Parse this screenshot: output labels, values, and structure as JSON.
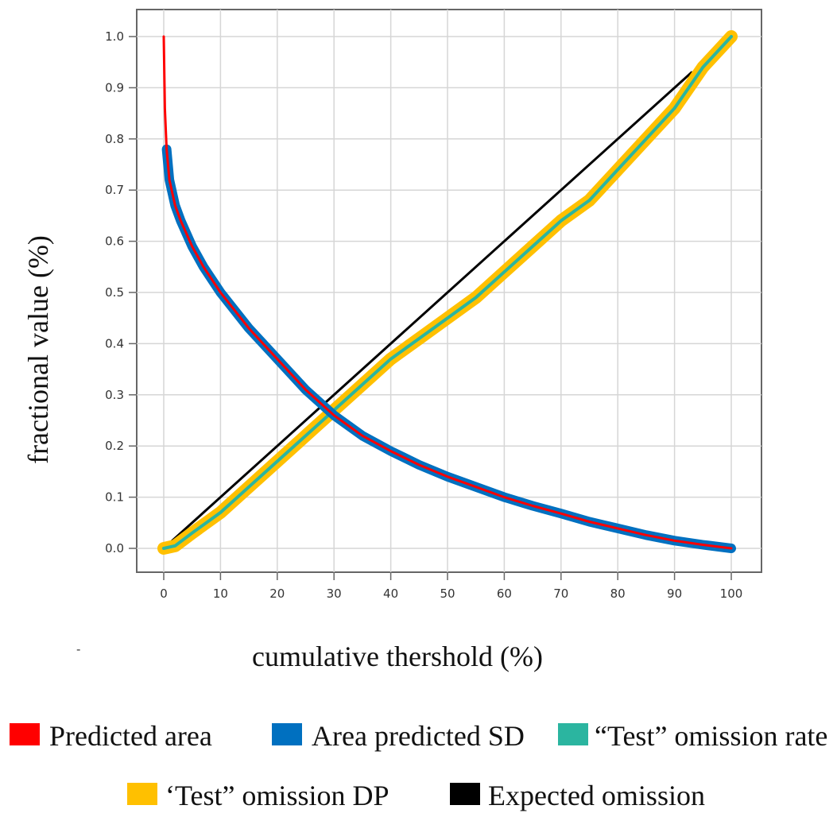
{
  "chart_data": {
    "type": "line",
    "xlabel": "cumulative thershold (%)",
    "ylabel": "fractional value (%)",
    "xlim": [
      0,
      100
    ],
    "ylim": [
      0,
      1
    ],
    "grid": true,
    "legend_placement": "bottom",
    "x_ticks": [
      "0",
      "10",
      "20",
      "30",
      "40",
      "50",
      "60",
      "70",
      "80",
      "90",
      "100"
    ],
    "y_ticks": [
      "0.0",
      "0.1",
      "0.2",
      "0.3",
      "0.4",
      "0.5",
      "0.6",
      "0.7",
      "0.8",
      "0.9",
      "1.0"
    ],
    "stray_mark": "-",
    "series": [
      {
        "name": "Predicted area",
        "color": "#ff0000",
        "x": [
          0,
          0.2,
          0.5,
          1,
          2,
          3,
          5,
          7,
          10,
          15,
          20,
          25,
          30,
          35,
          40,
          45,
          50,
          55,
          60,
          65,
          70,
          75,
          80,
          85,
          90,
          95,
          100
        ],
        "y": [
          1.0,
          0.86,
          0.78,
          0.72,
          0.67,
          0.64,
          0.59,
          0.55,
          0.5,
          0.43,
          0.37,
          0.31,
          0.26,
          0.22,
          0.19,
          0.163,
          0.14,
          0.12,
          0.1,
          0.083,
          0.068,
          0.052,
          0.039,
          0.026,
          0.015,
          0.007,
          0.0
        ]
      },
      {
        "name": "Area predicted SD",
        "color": "#0070c0",
        "x": [
          0.5,
          1,
          2,
          3,
          5,
          7,
          10,
          15,
          20,
          25,
          30,
          35,
          40,
          45,
          50,
          55,
          60,
          65,
          70,
          75,
          80,
          85,
          90,
          95,
          100
        ],
        "y": [
          0.78,
          0.72,
          0.67,
          0.64,
          0.59,
          0.55,
          0.5,
          0.43,
          0.37,
          0.31,
          0.26,
          0.22,
          0.19,
          0.163,
          0.14,
          0.12,
          0.1,
          0.083,
          0.068,
          0.052,
          0.039,
          0.026,
          0.015,
          0.007,
          0.0
        ]
      },
      {
        "name": "“Test” omission rate",
        "color": "#2bb5a0",
        "x": [
          0,
          2,
          5,
          10,
          15,
          20,
          25,
          30,
          35,
          40,
          45,
          50,
          55,
          60,
          65,
          70,
          75,
          80,
          85,
          90,
          95,
          100
        ],
        "y": [
          0.0,
          0.005,
          0.03,
          0.07,
          0.12,
          0.17,
          0.22,
          0.27,
          0.32,
          0.37,
          0.41,
          0.45,
          0.49,
          0.54,
          0.59,
          0.64,
          0.68,
          0.74,
          0.8,
          0.86,
          0.94,
          1.0
        ]
      },
      {
        "name": "‘Test” omission DP",
        "color": "#ffc000",
        "x": [
          0,
          2,
          5,
          10,
          15,
          20,
          25,
          30,
          35,
          40,
          45,
          50,
          55,
          60,
          65,
          70,
          75,
          80,
          85,
          90,
          95,
          100
        ],
        "y": [
          0.0,
          0.005,
          0.03,
          0.07,
          0.12,
          0.17,
          0.22,
          0.27,
          0.32,
          0.37,
          0.41,
          0.45,
          0.49,
          0.54,
          0.59,
          0.64,
          0.68,
          0.74,
          0.8,
          0.86,
          0.94,
          1.0
        ]
      },
      {
        "name": "Expected omission",
        "color": "#000000",
        "x": [
          0,
          93
        ],
        "y": [
          0.0,
          0.93
        ]
      }
    ]
  }
}
